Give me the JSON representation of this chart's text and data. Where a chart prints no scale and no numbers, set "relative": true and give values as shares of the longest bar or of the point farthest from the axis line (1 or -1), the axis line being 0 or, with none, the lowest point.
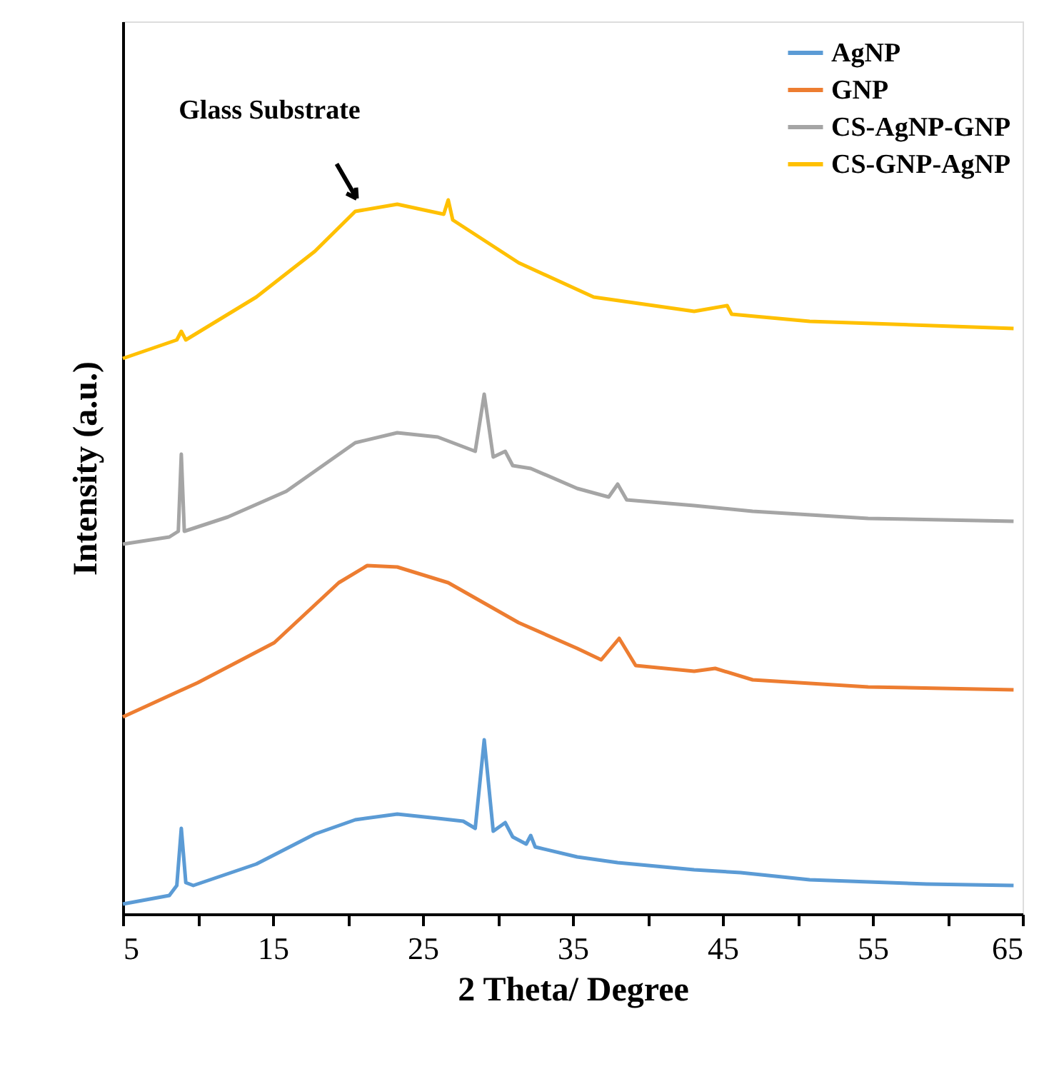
{
  "chart_data": {
    "type": "line",
    "relative": true,
    "xlabel": "2 Theta/ Degree",
    "ylabel": "Intensity (a.u.)",
    "xlim": [
      5,
      65
    ],
    "xticks": [
      5,
      {
        "value": 10,
        "label": null
      },
      15,
      {
        "value": 20,
        "label": null
      },
      25,
      {
        "value": 30,
        "label": null
      },
      35,
      {
        "value": 40,
        "label": null
      },
      45,
      {
        "value": 50,
        "label": null
      },
      55,
      {
        "value": 60,
        "label": null
      },
      65
    ],
    "legend": "top right",
    "grid": false,
    "annotations": [
      {
        "text": "Glass Substrate",
        "x": 20.5,
        "y": 0.99
      }
    ],
    "series": [
      {
        "name": "AgNP",
        "color": "#5b9bd5",
        "x": [
          5.0,
          8.1,
          8.6,
          8.9,
          9.2,
          9.7,
          13.9,
          17.8,
          20.5,
          23.3,
          26.0,
          27.7,
          28.5,
          29.1,
          29.7,
          30.5,
          31.0,
          31.9,
          32.2,
          32.5,
          35.3,
          38.0,
          43.1,
          46.2,
          50.8,
          58.6,
          64.4
        ],
        "values": [
          0.014,
          0.026,
          0.04,
          0.12,
          0.044,
          0.04,
          0.07,
          0.112,
          0.132,
          0.14,
          0.134,
          0.13,
          0.12,
          0.244,
          0.116,
          0.128,
          0.108,
          0.098,
          0.11,
          0.094,
          0.08,
          0.072,
          0.062,
          0.058,
          0.048,
          0.042,
          0.04
        ]
      },
      {
        "name": "GNP",
        "color": "#ed7d31",
        "x": [
          5.0,
          10.0,
          15.1,
          19.4,
          21.3,
          23.3,
          26.7,
          31.4,
          35.3,
          36.9,
          38.1,
          39.2,
          43.1,
          44.5,
          47.0,
          54.7,
          64.4
        ],
        "values": [
          0.276,
          0.324,
          0.38,
          0.464,
          0.488,
          0.486,
          0.464,
          0.408,
          0.372,
          0.356,
          0.386,
          0.348,
          0.34,
          0.344,
          0.328,
          0.318,
          0.314
        ]
      },
      {
        "name": "CS-AgNP-GNP",
        "color": "#a5a5a5",
        "x": [
          5.0,
          8.1,
          8.7,
          8.9,
          9.1,
          12.0,
          15.9,
          20.5,
          23.3,
          26.0,
          28.5,
          29.1,
          29.7,
          30.5,
          31.0,
          32.2,
          35.3,
          37.4,
          38.0,
          38.6,
          43.1,
          47.0,
          54.7,
          64.4
        ],
        "values": [
          0.518,
          0.528,
          0.536,
          0.644,
          0.536,
          0.556,
          0.592,
          0.66,
          0.674,
          0.668,
          0.648,
          0.728,
          0.64,
          0.648,
          0.628,
          0.624,
          0.596,
          0.584,
          0.602,
          0.58,
          0.572,
          0.564,
          0.554,
          0.55
        ]
      },
      {
        "name": "CS-GNP-AgNP",
        "color": "#ffc000",
        "x": [
          5.0,
          8.6,
          8.9,
          9.2,
          13.9,
          17.8,
          20.5,
          23.3,
          26.4,
          26.7,
          27.0,
          31.4,
          36.4,
          43.1,
          45.3,
          45.6,
          50.8,
          64.4
        ],
        "values": [
          0.778,
          0.804,
          0.816,
          0.804,
          0.864,
          0.928,
          0.984,
          0.994,
          0.98,
          1.0,
          0.972,
          0.912,
          0.864,
          0.844,
          0.852,
          0.84,
          0.83,
          0.82
        ]
      }
    ]
  }
}
